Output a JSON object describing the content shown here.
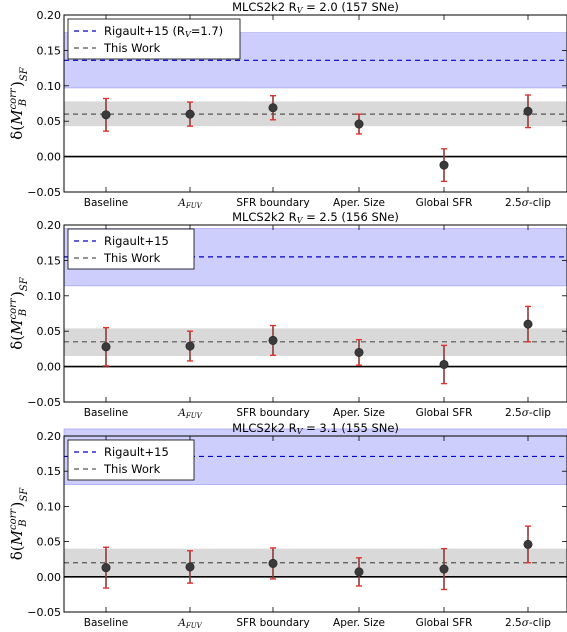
{
  "chart_data": [
    {
      "type": "scatter",
      "title": "MLCS2k2 R$_V$ = 2.0 (157 SNe)",
      "title_parts": {
        "pre": "MLCS2k2 R",
        "sub": "V",
        "post": " = 2.0 (157 SNe)"
      },
      "ylabel": "δ(M_B^corr)_SF",
      "ylim": [
        -0.05,
        0.2
      ],
      "yticks": [
        "−0.05",
        "0.00",
        "0.05",
        "0.10",
        "0.15",
        "0.20"
      ],
      "categories": [
        "Baseline",
        "A_FUV",
        "SFR boundary",
        "Aper. Size",
        "Global SFR",
        "2.5σ-clip"
      ],
      "values": [
        0.059,
        0.06,
        0.069,
        0.046,
        -0.012,
        0.064
      ],
      "errors": [
        0.023,
        0.017,
        0.017,
        0.014,
        0.023,
        0.023
      ],
      "reference_lines": [
        {
          "name": "Rigault+15 (R$_V$=1.7)",
          "label_pre": "Rigault+15 (R",
          "label_sub": "V",
          "label_post": "=1.7)",
          "value": 0.136,
          "band": [
            0.097,
            0.175
          ],
          "color": "#0000cc",
          "band_color": "#c6c6fb"
        },
        {
          "name": "This Work",
          "value": 0.06,
          "band": [
            0.043,
            0.078
          ],
          "color": "#555555",
          "band_color": "#d9d9d9"
        }
      ],
      "legend_position": "top-left"
    },
    {
      "type": "scatter",
      "title": "MLCS2k2 R$_V$ = 2.5 (156 SNe)",
      "title_parts": {
        "pre": "MLCS2k2 R",
        "sub": "V",
        "post": " = 2.5 (156 SNe)"
      },
      "ylabel": "δ(M_B^corr)_SF",
      "ylim": [
        -0.05,
        0.2
      ],
      "yticks": [
        "−0.05",
        "0.00",
        "0.05",
        "0.10",
        "0.15",
        "0.20"
      ],
      "categories": [
        "Baseline",
        "A_FUV",
        "SFR boundary",
        "Aper. Size",
        "Global SFR",
        "2.5σ-clip"
      ],
      "values": [
        0.028,
        0.029,
        0.037,
        0.02,
        0.003,
        0.06
      ],
      "errors": [
        0.027,
        0.021,
        0.021,
        0.018,
        0.027,
        0.025
      ],
      "reference_lines": [
        {
          "name": "Rigault+15",
          "label_pre": "Rigault+15",
          "label_sub": "",
          "label_post": "",
          "value": 0.155,
          "band": [
            0.114,
            0.195
          ],
          "color": "#0000cc",
          "band_color": "#c6c6fb"
        },
        {
          "name": "This Work",
          "value": 0.035,
          "band": [
            0.015,
            0.054
          ],
          "color": "#555555",
          "band_color": "#d9d9d9"
        }
      ],
      "legend_position": "top-left"
    },
    {
      "type": "scatter",
      "title": "MLCS2k2 R$_V$ = 3.1 (155 SNe)",
      "title_parts": {
        "pre": "MLCS2k2 R",
        "sub": "V",
        "post": " = 3.1 (155 SNe)"
      },
      "ylabel": "δ(M_B^corr)_SF",
      "ylim": [
        -0.05,
        0.2
      ],
      "yticks": [
        "−0.05",
        "0.00",
        "0.05",
        "0.10",
        "0.15",
        "0.20"
      ],
      "categories": [
        "Baseline",
        "A_FUV",
        "SFR boundary",
        "Aper. Size",
        "Global SFR",
        "2.5σ-clip"
      ],
      "values": [
        0.013,
        0.014,
        0.019,
        0.007,
        0.011,
        0.046
      ],
      "errors": [
        0.029,
        0.023,
        0.022,
        0.02,
        0.029,
        0.026
      ],
      "reference_lines": [
        {
          "name": "Rigault+15",
          "label_pre": "Rigault+15",
          "label_sub": "",
          "label_post": "",
          "value": 0.171,
          "band": [
            0.131,
            0.21
          ],
          "color": "#0000cc",
          "band_color": "#c6c6fb"
        },
        {
          "name": "This Work",
          "value": 0.02,
          "band": [
            0.0,
            0.04
          ],
          "color": "#555555",
          "band_color": "#d9d9d9"
        }
      ],
      "legend_position": "top-left"
    }
  ]
}
